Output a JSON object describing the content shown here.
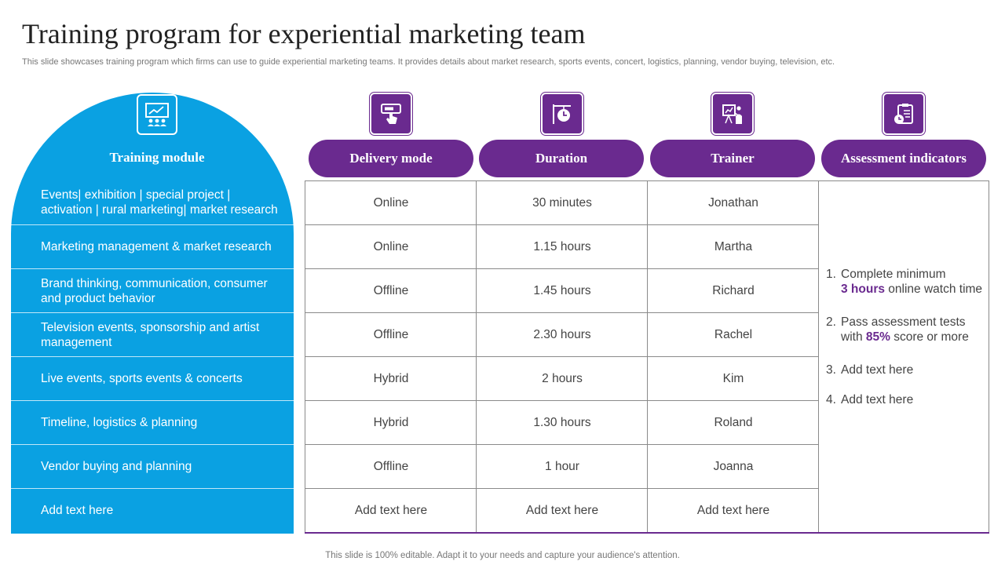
{
  "slide": {
    "title": "Training program for experiential marketing team",
    "subtitle": "This slide showcases training program which firms can use to guide experiential marketing teams. It provides details about market research, sports events, concert, logistics, planning, vendor buying, television, etc.",
    "footer": "This slide is 100% editable. Adapt it to your needs and capture your audience's attention."
  },
  "colors": {
    "blue": "#0aa1e2",
    "purple": "#6a2a8f"
  },
  "headers": {
    "module": "Training module",
    "delivery": "Delivery mode",
    "duration": "Duration",
    "trainer": "Trainer",
    "assessment": "Assessment indicators"
  },
  "icons": {
    "module": "presentation-audience-icon",
    "delivery": "touch-screen-icon",
    "duration": "clock-signboard-icon",
    "trainer": "trainer-board-icon",
    "assessment": "clipboard-clock-icon"
  },
  "rows": [
    {
      "module": "Events| exhibition | special project | activation | rural marketing| market research",
      "delivery": "Online",
      "duration": "30 minutes",
      "trainer": "Jonathan"
    },
    {
      "module": "Marketing management & market research",
      "delivery": "Online",
      "duration": "1.15 hours",
      "trainer": "Martha"
    },
    {
      "module": "Brand thinking, communication, consumer and product behavior",
      "delivery": "Offline",
      "duration": "1.45 hours",
      "trainer": "Richard"
    },
    {
      "module": "Television events, sponsorship and artist management",
      "delivery": "Offline",
      "duration": "2.30 hours",
      "trainer": "Rachel"
    },
    {
      "module": "Live events, sports events & concerts",
      "delivery": "Hybrid",
      "duration": "2 hours",
      "trainer": "Kim"
    },
    {
      "module": "Timeline, logistics & planning",
      "delivery": "Hybrid",
      "duration": "1.30 hours",
      "trainer": "Roland"
    },
    {
      "module": "Vendor buying and planning",
      "delivery": "Offline",
      "duration": "1 hour",
      "trainer": "Joanna"
    },
    {
      "module": "Add text here",
      "delivery": "Add text here",
      "duration": "Add text here",
      "trainer": "Add text here"
    }
  ],
  "assessment": [
    {
      "num": "1.",
      "before": "Complete minimum",
      "highlight": "3 hours",
      "after": " online watch time"
    },
    {
      "num": "2.",
      "before": "Pass assessment tests with ",
      "highlight": "85%",
      "after": " score or more"
    },
    {
      "num": "3.",
      "before": "Add text here",
      "highlight": "",
      "after": ""
    },
    {
      "num": "4.",
      "before": "Add text here",
      "highlight": "",
      "after": ""
    }
  ]
}
